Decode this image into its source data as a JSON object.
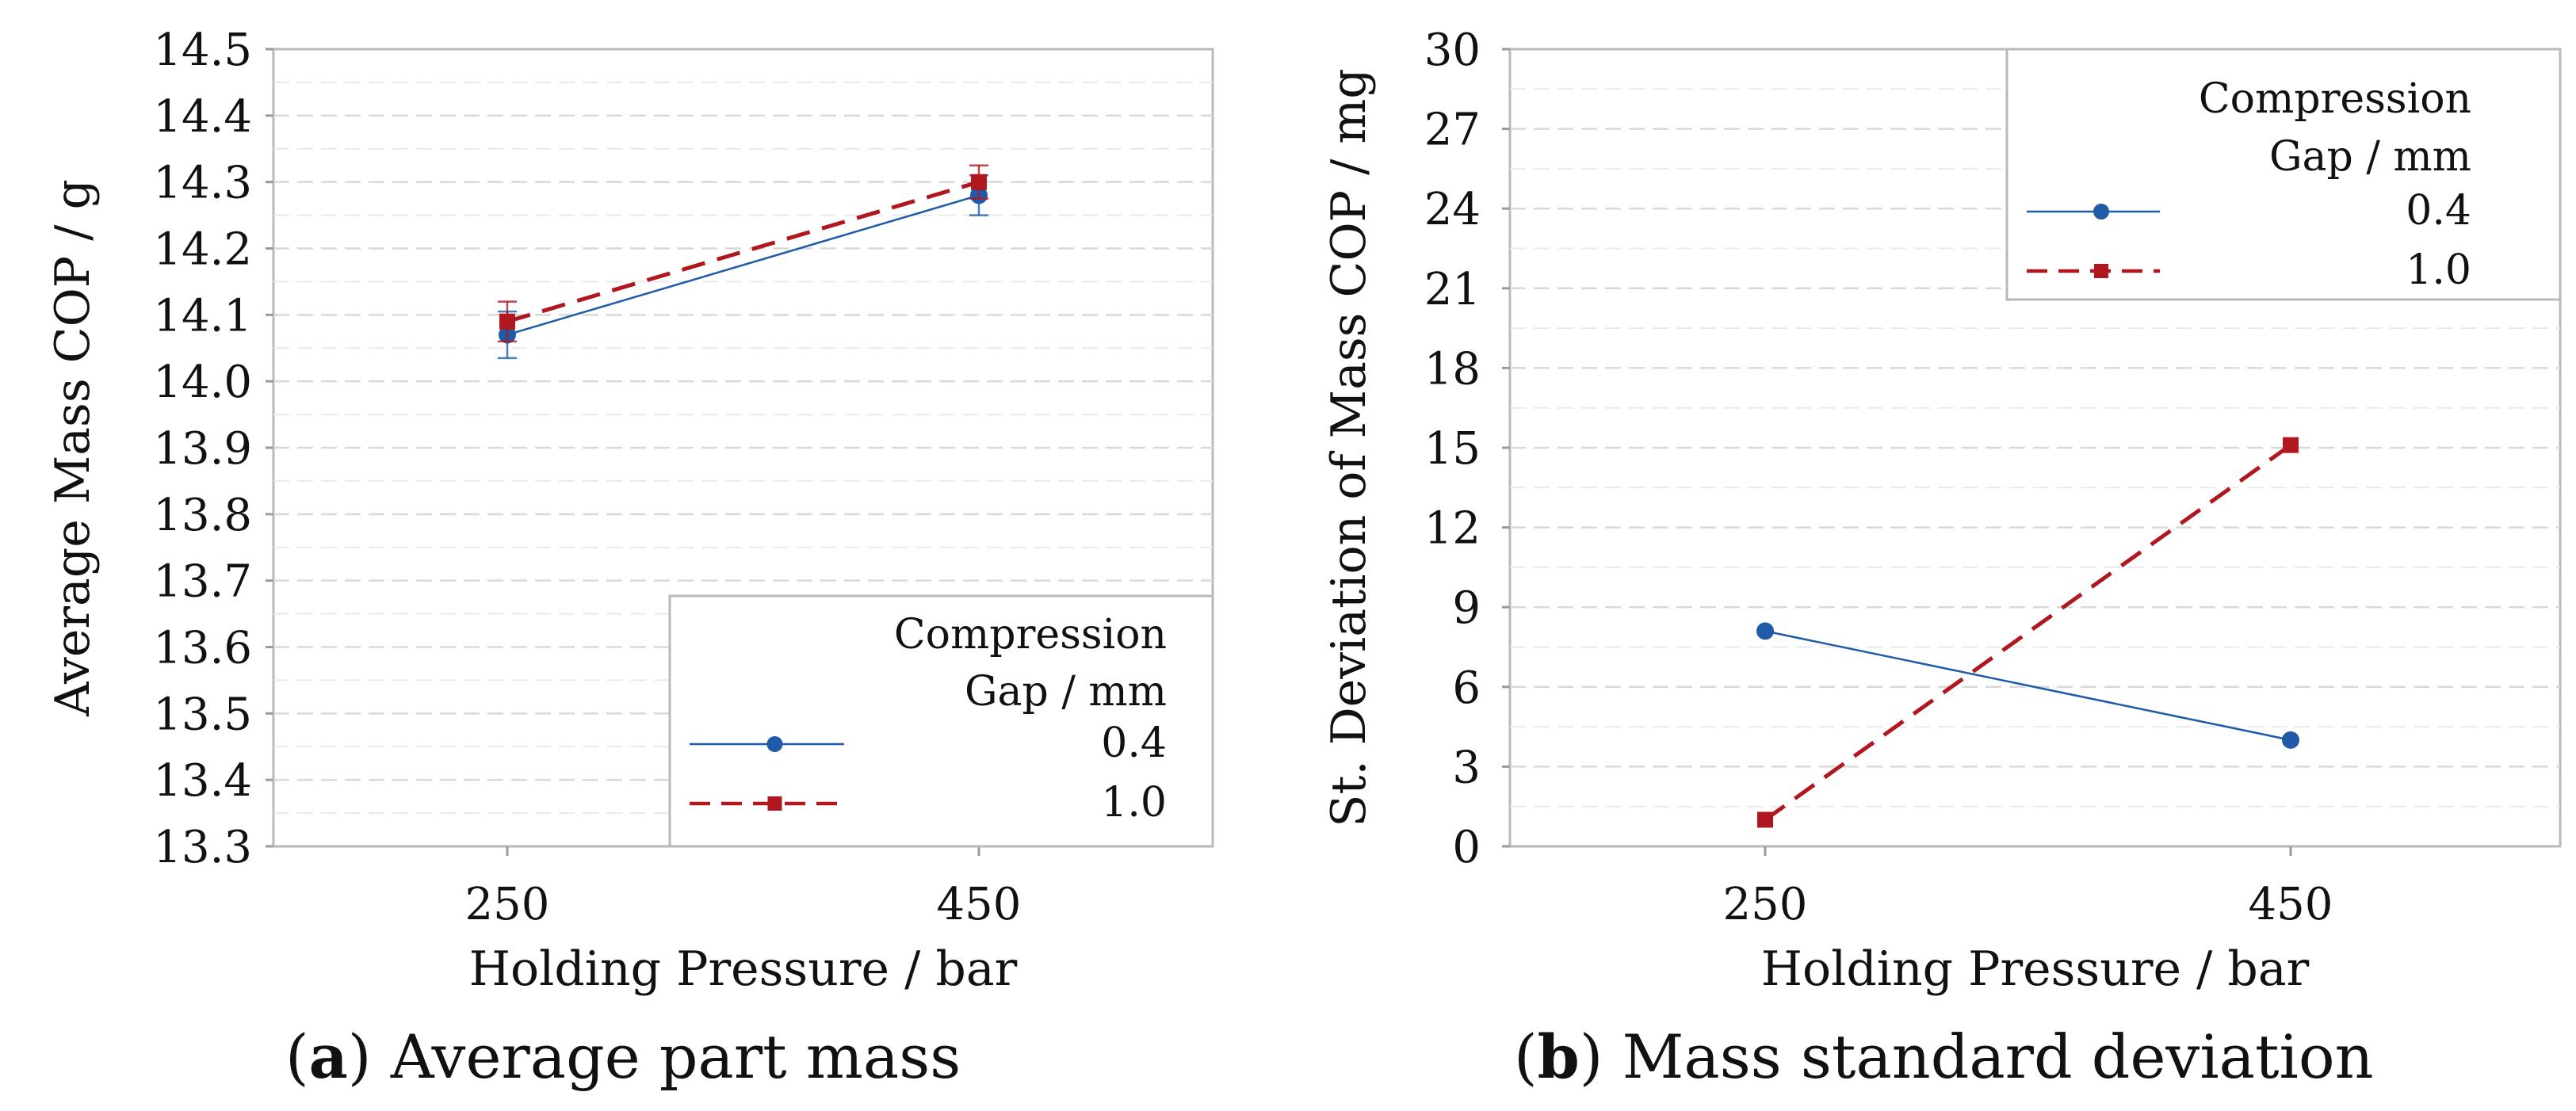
{
  "chart_data": [
    {
      "type": "line",
      "panel": "a",
      "caption_label": "a",
      "caption_text": "Average part mass",
      "title": "",
      "xlabel": "Holding Pressure / bar",
      "ylabel": "Average Mass COP / g",
      "categories": [
        "250",
        "450"
      ],
      "ylim": [
        13.3,
        14.5
      ],
      "yticks": [
        13.3,
        13.4,
        13.5,
        13.6,
        13.7,
        13.8,
        13.9,
        14.0,
        14.1,
        14.2,
        14.3,
        14.4,
        14.5
      ],
      "ytick_labels": [
        "13.3",
        "13.4",
        "13.5",
        "13.6",
        "13.7",
        "13.8",
        "13.9",
        "14.0",
        "14.1",
        "14.2",
        "14.3",
        "14.4",
        "14.5"
      ],
      "grid": true,
      "legend": {
        "title_line1": "Compression",
        "title_line2": "Gap / mm",
        "placement": "bottom-right"
      },
      "series": [
        {
          "name": "0.4",
          "values": [
            14.07,
            14.28
          ],
          "error": [
            0.035,
            0.03
          ],
          "color": "#1f5ba8",
          "marker": "circle",
          "dash": "solid"
        },
        {
          "name": "1.0",
          "values": [
            14.09,
            14.3
          ],
          "error": [
            0.03,
            0.025
          ],
          "color": "#b0171f",
          "marker": "square",
          "dash": "dashed"
        }
      ]
    },
    {
      "type": "line",
      "panel": "b",
      "caption_label": "b",
      "caption_text": "Mass standard deviation",
      "title": "",
      "xlabel": "Holding Pressure / bar",
      "ylabel": "St. Deviation of Mass COP / mg",
      "categories": [
        "250",
        "450"
      ],
      "ylim": [
        0,
        30
      ],
      "yticks": [
        0,
        3,
        6,
        9,
        12,
        15,
        18,
        21,
        24,
        27,
        30
      ],
      "ytick_labels": [
        "0",
        "3",
        "6",
        "9",
        "12",
        "15",
        "18",
        "21",
        "24",
        "27",
        "30"
      ],
      "grid": true,
      "legend": {
        "title_line1": "Compression",
        "title_line2": "Gap / mm",
        "placement": "top-right"
      },
      "series": [
        {
          "name": "0.4",
          "values": [
            8.1,
            4.0
          ],
          "color": "#1f5ba8",
          "marker": "circle",
          "dash": "solid"
        },
        {
          "name": "1.0",
          "values": [
            1.0,
            15.1
          ],
          "color": "#b0171f",
          "marker": "square",
          "dash": "dashed"
        }
      ]
    }
  ]
}
